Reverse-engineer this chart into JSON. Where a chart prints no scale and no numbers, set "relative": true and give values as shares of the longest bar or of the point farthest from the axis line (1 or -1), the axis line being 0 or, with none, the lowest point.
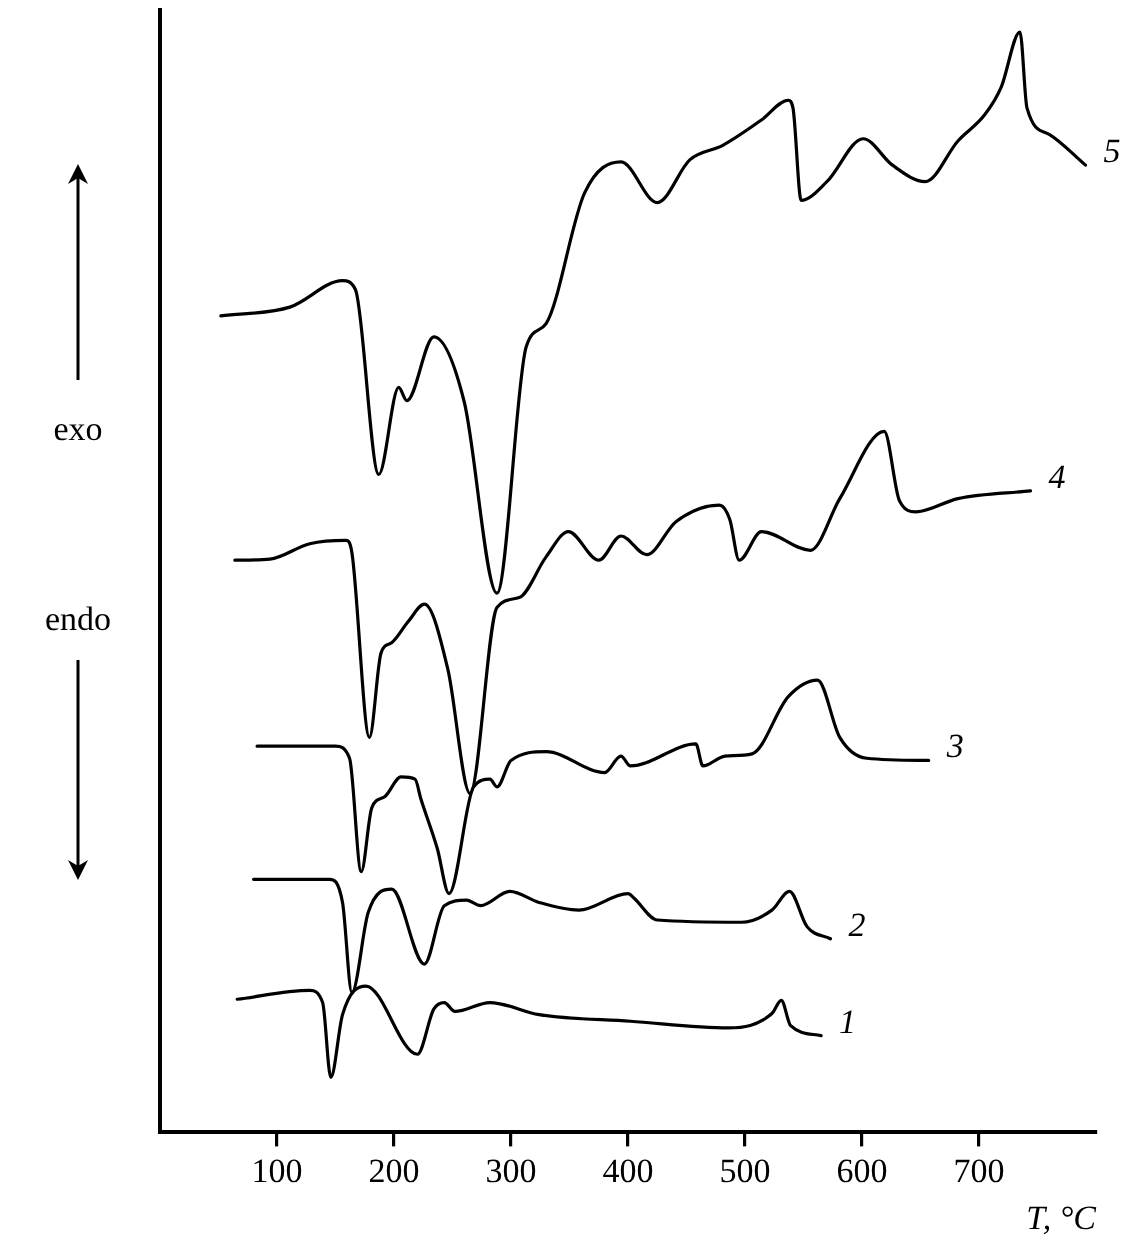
{
  "chart_data": {
    "type": "line",
    "relative": true,
    "xlabel": "T, °C",
    "xlim": [
      0,
      800
    ],
    "xticks": [
      100,
      200,
      300,
      400,
      500,
      600,
      700
    ],
    "grid": false,
    "legend": false,
    "marker": "none",
    "line_style": "solid",
    "annotations": [
      "exo",
      "endo"
    ],
    "series": [
      {
        "name": "5",
        "color": "#000000",
        "x": [
          52,
          111,
          156,
          167,
          187,
          204,
          211,
          234,
          260,
          288,
          313,
          330,
          363,
          394,
          425,
          453,
          481,
          514,
          537,
          541,
          548,
          570,
          601,
          626,
          654,
          682,
          705,
          719,
          735,
          741,
          760,
          791
        ],
        "values": [
          0.742,
          0.75,
          0.774,
          0.766,
          0.598,
          0.677,
          0.665,
          0.723,
          0.664,
          0.49,
          0.714,
          0.735,
          0.854,
          0.882,
          0.845,
          0.884,
          0.897,
          0.92,
          0.938,
          0.931,
          0.847,
          0.864,
          0.903,
          0.879,
          0.864,
          0.901,
          0.925,
          0.95,
          1,
          0.931,
          0.907,
          0.879
        ]
      },
      {
        "name": "4",
        "color": "#000000",
        "x": [
          64,
          94,
          128,
          159,
          164,
          179,
          189,
          198,
          212,
          226,
          246,
          265,
          288,
          307,
          330,
          349,
          375,
          394,
          416,
          441,
          478,
          487,
          495,
          514,
          556,
          581,
          619,
          632,
          646,
          682,
          744
        ],
        "values": [
          0.52,
          0.521,
          0.535,
          0.538,
          0.527,
          0.359,
          0.436,
          0.445,
          0.464,
          0.48,
          0.421,
          0.308,
          0.477,
          0.486,
          0.523,
          0.546,
          0.52,
          0.542,
          0.525,
          0.555,
          0.57,
          0.557,
          0.52,
          0.546,
          0.529,
          0.576,
          0.637,
          0.574,
          0.564,
          0.576,
          0.583
        ]
      },
      {
        "name": "3",
        "color": "#000000",
        "x": [
          83,
          150,
          162,
          172,
          181,
          192,
          206,
          218,
          223,
          237,
          247,
          268,
          282,
          288,
          300,
          330,
          380,
          394,
          402,
          458,
          464,
          483,
          506,
          537,
          562,
          581,
          604,
          657
        ],
        "values": [
          0.351,
          0.351,
          0.34,
          0.237,
          0.295,
          0.305,
          0.323,
          0.321,
          0.303,
          0.258,
          0.217,
          0.314,
          0.321,
          0.314,
          0.338,
          0.346,
          0.327,
          0.342,
          0.333,
          0.353,
          0.333,
          0.342,
          0.344,
          0.396,
          0.411,
          0.359,
          0.34,
          0.338
        ]
      },
      {
        "name": "2",
        "color": "#000000",
        "x": [
          80,
          145,
          156,
          164,
          178,
          198,
          226,
          243,
          262,
          274,
          299,
          324,
          358,
          400,
          405,
          425,
          497,
          523,
          538,
          553,
          573
        ],
        "values": [
          0.23,
          0.23,
          0.209,
          0.127,
          0.2,
          0.221,
          0.153,
          0.206,
          0.211,
          0.206,
          0.219,
          0.209,
          0.202,
          0.217,
          0.213,
          0.193,
          0.191,
          0.202,
          0.219,
          0.187,
          0.176
        ]
      },
      {
        "name": "1",
        "color": "#000000",
        "x": [
          66,
          128,
          139,
          146,
          156,
          176,
          220,
          234,
          243,
          252,
          282,
          324,
          402,
          486,
          523,
          531,
          539,
          565
        ],
        "values": [
          0.121,
          0.129,
          0.118,
          0.05,
          0.107,
          0.133,
          0.071,
          0.112,
          0.118,
          0.11,
          0.118,
          0.107,
          0.101,
          0.095,
          0.108,
          0.12,
          0.097,
          0.088
        ]
      }
    ]
  }
}
